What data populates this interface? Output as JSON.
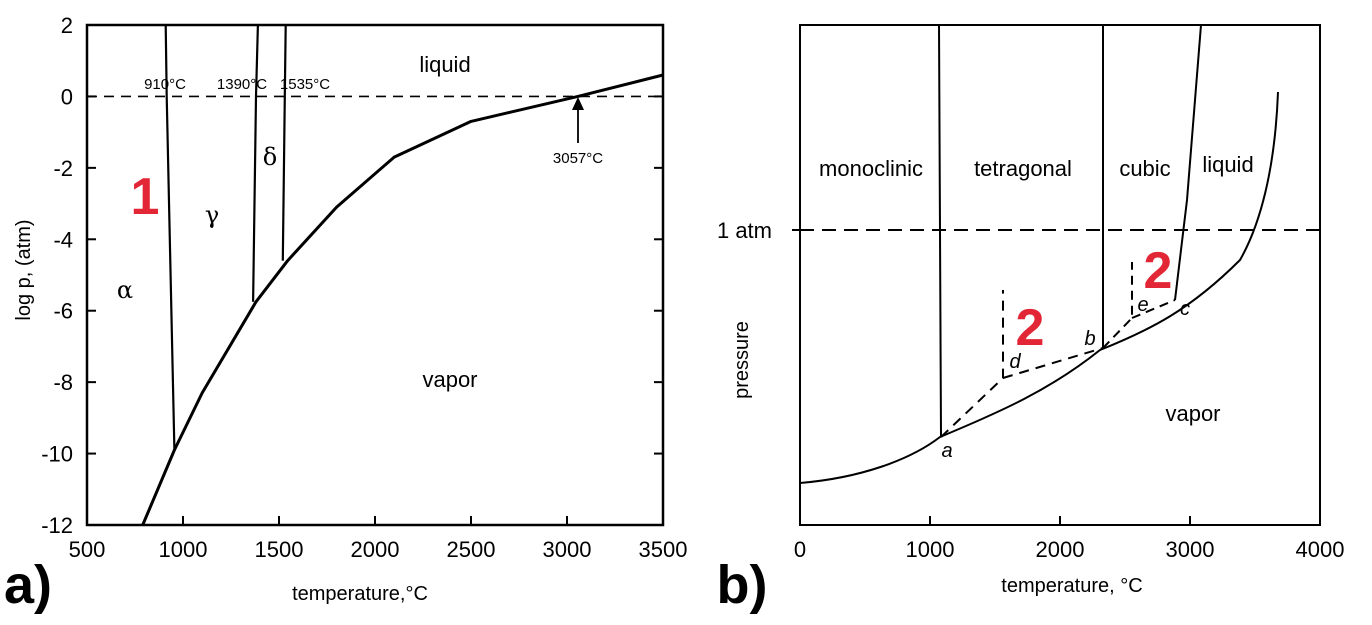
{
  "chart_data": [
    {
      "type": "line",
      "panel_label": "a)",
      "xlabel": "temperature,°C",
      "ylabel": "log p, (atm)",
      "xlim": [
        500,
        3500
      ],
      "ylim": [
        -12,
        2
      ],
      "xticks": [
        500,
        1000,
        1500,
        2000,
        2500,
        3000,
        3500
      ],
      "yticks": [
        2,
        0,
        -2,
        -4,
        -6,
        -8,
        -10,
        -12
      ],
      "series": [
        {
          "name": "vapor boundary",
          "style": "solid",
          "x": [
            790,
            955,
            1100,
            1380,
            1545,
            1800,
            2100,
            2500,
            3057,
            3500
          ],
          "y": [
            -12,
            -9.9,
            -8.3,
            -5.75,
            -4.6,
            -3.1,
            -1.7,
            -0.7,
            0,
            0.6
          ]
        },
        {
          "name": "alpha-gamma boundary",
          "style": "solid",
          "x": [
            910,
            915,
            955
          ],
          "y": [
            2,
            0,
            -9.9
          ]
        },
        {
          "name": "gamma-delta boundary",
          "style": "solid",
          "x": [
            1390,
            1380,
            1365
          ],
          "y": [
            2,
            0,
            -5.75
          ]
        },
        {
          "name": "delta-liquid boundary",
          "style": "solid",
          "x": [
            1535,
            1530,
            1520
          ],
          "y": [
            2,
            0,
            -4.6
          ]
        },
        {
          "name": "1 atm",
          "style": "dashed",
          "x": [
            500,
            3500
          ],
          "y": [
            0,
            0
          ]
        }
      ],
      "region_labels": [
        "α",
        "γ",
        "δ",
        "liquid",
        "vapor"
      ],
      "annotations": [
        "910°C",
        "1390°C",
        "1535°C",
        "3057°C"
      ],
      "marker": "1"
    },
    {
      "type": "line",
      "panel_label": "b)",
      "xlabel": "temperature, °C",
      "ylabel": "pressure",
      "xlim": [
        0,
        4000
      ],
      "xticks": [
        0,
        1000,
        2000,
        3000,
        4000
      ],
      "yticks": [],
      "hline_label": "1 atm",
      "series": [
        {
          "name": "vapor boundary",
          "style": "solid"
        },
        {
          "name": "monoclinic-tetragonal boundary",
          "style": "solid"
        },
        {
          "name": "tetragonal-cubic boundary",
          "style": "solid"
        },
        {
          "name": "cubic-liquid boundary",
          "style": "solid"
        },
        {
          "name": "metastable extensions",
          "style": "dashed"
        },
        {
          "name": "1 atm",
          "style": "dashed"
        }
      ],
      "region_labels": [
        "monoclinic",
        "tetragonal",
        "cubic",
        "liquid",
        "vapor"
      ],
      "points": [
        "a",
        "b",
        "c",
        "d",
        "e"
      ],
      "markers": [
        "2",
        "2"
      ]
    }
  ]
}
